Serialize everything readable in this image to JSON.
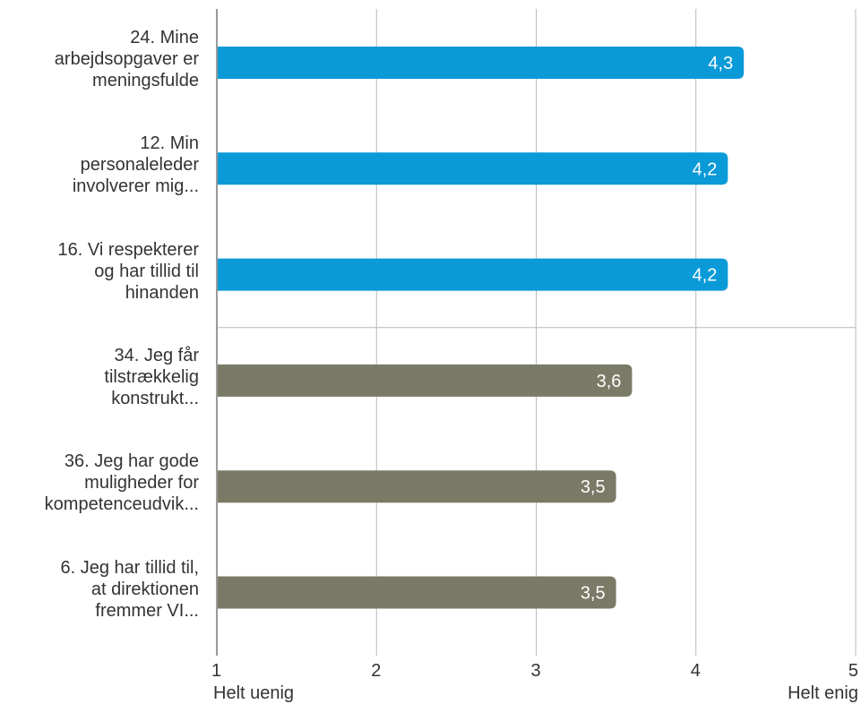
{
  "chart_data": {
    "type": "bar",
    "orientation": "horizontal",
    "categories": [
      "24. Mine arbejdsopgaver er meningsfulde",
      "12. Min personaleleder involverer mig...",
      "16. Vi respekterer og har tillid til hinanden",
      "34. Jeg får tilstrækkelig konstrukt...",
      "36. Jeg har gode muligheder for kompetenceudvik...",
      "6. Jeg har tillid til, at direktionen fremmer VI..."
    ],
    "category_lines": [
      [
        "24. Mine",
        "arbejdsopgaver er",
        "meningsfulde"
      ],
      [
        "12. Min",
        "personaleleder",
        "involverer mig..."
      ],
      [
        "16. Vi respekterer",
        "og har tillid til",
        "hinanden"
      ],
      [
        "34. Jeg får",
        "tilstrækkelig",
        "konstrukt..."
      ],
      [
        "36. Jeg har gode",
        "muligheder for",
        "kompetenceudvik..."
      ],
      [
        "6. Jeg har tillid til,",
        "at direktionen",
        "fremmer VI..."
      ]
    ],
    "values": [
      4.3,
      4.2,
      4.2,
      3.6,
      3.5,
      3.5
    ],
    "value_labels": [
      "4,3",
      "4,2",
      "4,2",
      "3,6",
      "3,5",
      "3,5"
    ],
    "groups": [
      "top",
      "top",
      "top",
      "bottom",
      "bottom",
      "bottom"
    ],
    "xlim": [
      1,
      5
    ],
    "xticks": [
      1,
      2,
      3,
      4,
      5
    ],
    "xtick_labels": [
      "1",
      "2",
      "3",
      "4",
      "5"
    ],
    "x_axis_min_label": "Helt uenig",
    "x_axis_max_label": "Helt enig",
    "grid": true,
    "colors": {
      "top": "#0a9ad7",
      "bottom": "#7a7a66",
      "grid": "#b9b9b9",
      "axis": "#9a9a9a",
      "value_text": "#ffffff"
    }
  }
}
